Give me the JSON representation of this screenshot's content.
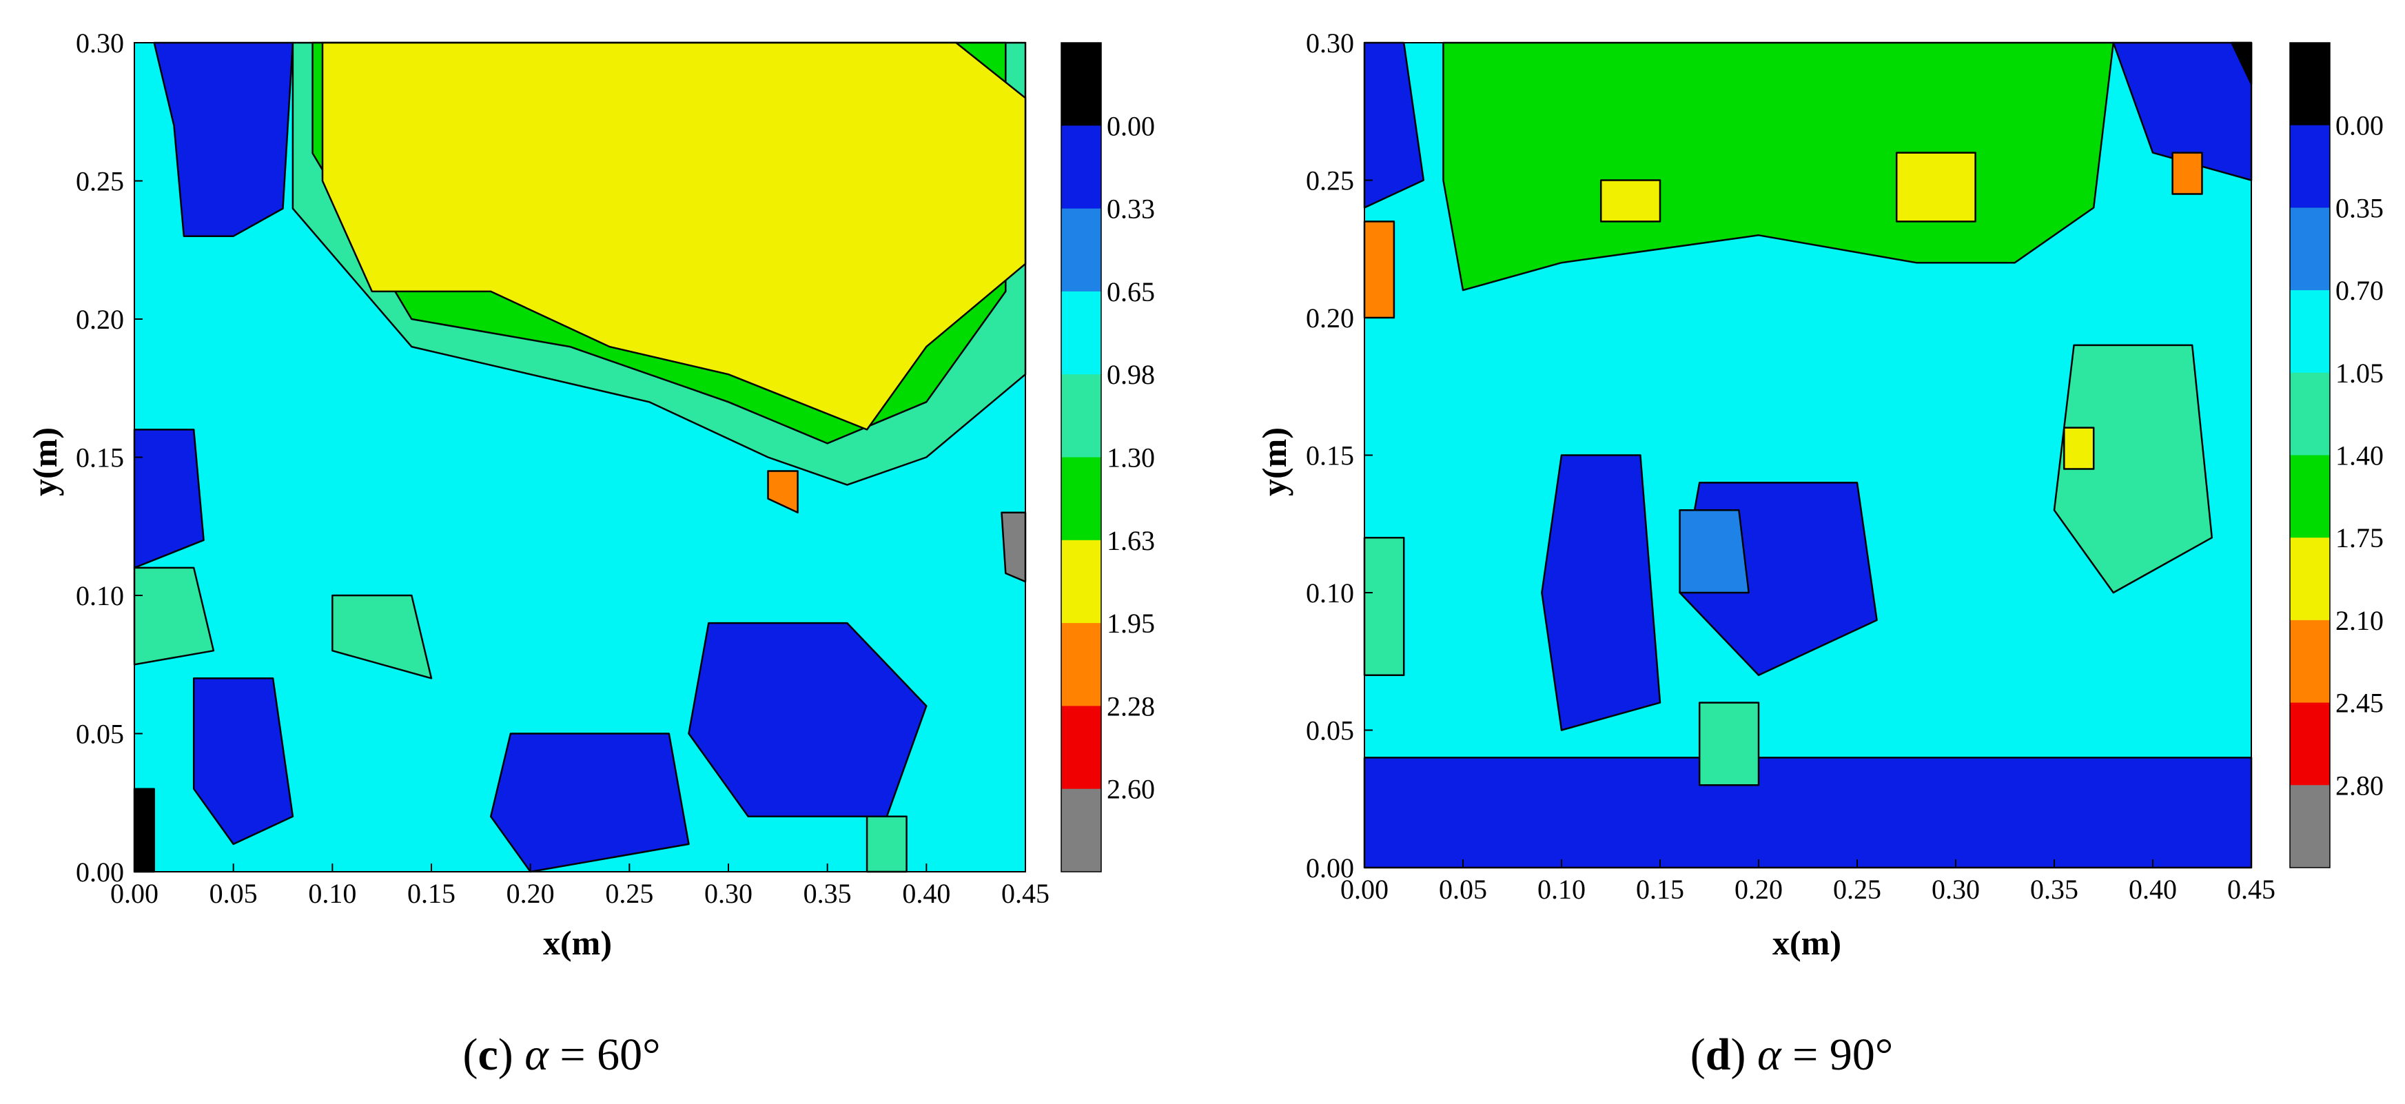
{
  "chart_data": [
    {
      "type": "heatmap",
      "title": "",
      "xlabel": "x(m)",
      "ylabel": "y(m)",
      "xlim": [
        0,
        0.45
      ],
      "ylim": [
        0,
        0.3
      ],
      "x_ticks": [
        "0.00",
        "0.05",
        "0.10",
        "0.15",
        "0.20",
        "0.25",
        "0.30",
        "0.35",
        "0.40",
        "0.45"
      ],
      "y_ticks": [
        "0.00",
        "0.05",
        "0.10",
        "0.15",
        "0.20",
        "0.25",
        "0.30"
      ],
      "caption": {
        "letter": "c",
        "variable": "α",
        "rest": " = 60°"
      },
      "colorbar": {
        "labels": [
          "0.00",
          "0.33",
          "0.65",
          "0.98",
          "1.30",
          "1.63",
          "1.95",
          "2.28",
          "2.60"
        ],
        "colors": [
          "#000000",
          "#0a1ee6",
          "#1e82e6",
          "#00f5f5",
          "#2de6a0",
          "#00dc00",
          "#f0f000",
          "#ff8200",
          "#f00000",
          "#808080"
        ]
      },
      "contour_regions": [
        {
          "level": 4,
          "points": [
            [
              0.08,
              0.3
            ],
            [
              0.45,
              0.3
            ],
            [
              0.45,
              0.18
            ],
            [
              0.4,
              0.15
            ],
            [
              0.36,
              0.14
            ],
            [
              0.32,
              0.15
            ],
            [
              0.26,
              0.17
            ],
            [
              0.2,
              0.18
            ],
            [
              0.14,
              0.19
            ],
            [
              0.08,
              0.24
            ]
          ]
        },
        {
          "level": 5,
          "points": [
            [
              0.09,
              0.3
            ],
            [
              0.44,
              0.3
            ],
            [
              0.44,
              0.21
            ],
            [
              0.4,
              0.17
            ],
            [
              0.35,
              0.155
            ],
            [
              0.3,
              0.17
            ],
            [
              0.22,
              0.19
            ],
            [
              0.14,
              0.2
            ],
            [
              0.09,
              0.26
            ]
          ]
        },
        {
          "level": 6,
          "points": [
            [
              0.095,
              0.3
            ],
            [
              0.415,
              0.3
            ],
            [
              0.45,
              0.28
            ],
            [
              0.45,
              0.22
            ],
            [
              0.4,
              0.19
            ],
            [
              0.37,
              0.16
            ],
            [
              0.3,
              0.18
            ],
            [
              0.24,
              0.19
            ],
            [
              0.18,
              0.21
            ],
            [
              0.12,
              0.21
            ],
            [
              0.095,
              0.25
            ]
          ]
        },
        {
          "level": 1,
          "points": [
            [
              0.01,
              0.3
            ],
            [
              0.08,
              0.3
            ],
            [
              0.075,
              0.24
            ],
            [
              0.05,
              0.23
            ],
            [
              0.025,
              0.23
            ],
            [
              0.02,
              0.27
            ]
          ]
        },
        {
          "level": 1,
          "points": [
            [
              0.0,
              0.16
            ],
            [
              0.03,
              0.16
            ],
            [
              0.035,
              0.12
            ],
            [
              0.0,
              0.11
            ]
          ]
        },
        {
          "level": 1,
          "points": [
            [
              0.29,
              0.09
            ],
            [
              0.36,
              0.09
            ],
            [
              0.4,
              0.06
            ],
            [
              0.38,
              0.02
            ],
            [
              0.31,
              0.02
            ],
            [
              0.28,
              0.05
            ]
          ]
        },
        {
          "level": 1,
          "points": [
            [
              0.19,
              0.05
            ],
            [
              0.27,
              0.05
            ],
            [
              0.28,
              0.01
            ],
            [
              0.2,
              0.0
            ],
            [
              0.18,
              0.02
            ]
          ]
        },
        {
          "level": 1,
          "points": [
            [
              0.03,
              0.07
            ],
            [
              0.07,
              0.07
            ],
            [
              0.08,
              0.02
            ],
            [
              0.05,
              0.01
            ],
            [
              0.03,
              0.03
            ]
          ]
        },
        {
          "level": 4,
          "points": [
            [
              0.0,
              0.11
            ],
            [
              0.03,
              0.11
            ],
            [
              0.04,
              0.08
            ],
            [
              0.0,
              0.075
            ]
          ]
        },
        {
          "level": 4,
          "points": [
            [
              0.1,
              0.1
            ],
            [
              0.14,
              0.1
            ],
            [
              0.15,
              0.07
            ],
            [
              0.1,
              0.08
            ]
          ]
        },
        {
          "level": 4,
          "points": [
            [
              0.37,
              0.02
            ],
            [
              0.39,
              0.02
            ],
            [
              0.39,
              0.0
            ],
            [
              0.37,
              0.0
            ]
          ]
        },
        {
          "level": 0,
          "points": [
            [
              0.0,
              0.03
            ],
            [
              0.01,
              0.03
            ],
            [
              0.01,
              0.0
            ],
            [
              0.0,
              0.0
            ]
          ]
        },
        {
          "level": 9,
          "points": [
            [
              0.438,
              0.13
            ],
            [
              0.45,
              0.13
            ],
            [
              0.45,
              0.105
            ],
            [
              0.44,
              0.108
            ]
          ]
        },
        {
          "level": 7,
          "points": [
            [
              0.32,
              0.145
            ],
            [
              0.335,
              0.145
            ],
            [
              0.335,
              0.13
            ],
            [
              0.32,
              0.135
            ]
          ]
        }
      ]
    },
    {
      "type": "heatmap",
      "title": "",
      "xlabel": "x(m)",
      "ylabel": "y(m)",
      "xlim": [
        0,
        0.45
      ],
      "ylim": [
        0,
        0.3
      ],
      "x_ticks": [
        "0.00",
        "0.05",
        "0.10",
        "0.15",
        "0.20",
        "0.25",
        "0.30",
        "0.35",
        "0.40",
        "0.45"
      ],
      "y_ticks": [
        "0.00",
        "0.05",
        "0.10",
        "0.15",
        "0.20",
        "0.25",
        "0.30"
      ],
      "caption": {
        "letter": "d",
        "variable": "α",
        "rest": " = 90°"
      },
      "colorbar": {
        "labels": [
          "0.00",
          "0.35",
          "0.70",
          "1.05",
          "1.40",
          "1.75",
          "2.10",
          "2.45",
          "2.80"
        ],
        "colors": [
          "#000000",
          "#0a1ee6",
          "#1e82e6",
          "#00f5f5",
          "#2de6a0",
          "#00dc00",
          "#f0f000",
          "#ff8200",
          "#f00000",
          "#808080"
        ]
      },
      "contour_regions": [
        {
          "level": 5,
          "points": [
            [
              0.04,
              0.3
            ],
            [
              0.38,
              0.3
            ],
            [
              0.37,
              0.24
            ],
            [
              0.33,
              0.22
            ],
            [
              0.28,
              0.22
            ],
            [
              0.2,
              0.23
            ],
            [
              0.1,
              0.22
            ],
            [
              0.05,
              0.21
            ],
            [
              0.04,
              0.25
            ]
          ]
        },
        {
          "level": 4,
          "points": [
            [
              0.36,
              0.19
            ],
            [
              0.42,
              0.19
            ],
            [
              0.43,
              0.12
            ],
            [
              0.38,
              0.1
            ],
            [
              0.35,
              0.13
            ]
          ]
        },
        {
          "level": 1,
          "points": [
            [
              0.38,
              0.3
            ],
            [
              0.45,
              0.3
            ],
            [
              0.45,
              0.25
            ],
            [
              0.4,
              0.26
            ]
          ]
        },
        {
          "level": 1,
          "points": [
            [
              0.0,
              0.3
            ],
            [
              0.02,
              0.3
            ],
            [
              0.03,
              0.25
            ],
            [
              0.0,
              0.24
            ]
          ]
        },
        {
          "level": 1,
          "points": [
            [
              0.0,
              0.04
            ],
            [
              0.45,
              0.04
            ],
            [
              0.45,
              0.0
            ],
            [
              0.0,
              0.0
            ]
          ]
        },
        {
          "level": 1,
          "points": [
            [
              0.1,
              0.15
            ],
            [
              0.14,
              0.15
            ],
            [
              0.15,
              0.06
            ],
            [
              0.1,
              0.05
            ],
            [
              0.09,
              0.1
            ]
          ]
        },
        {
          "level": 1,
          "points": [
            [
              0.17,
              0.14
            ],
            [
              0.25,
              0.14
            ],
            [
              0.26,
              0.09
            ],
            [
              0.2,
              0.07
            ],
            [
              0.16,
              0.1
            ]
          ]
        },
        {
          "level": 2,
          "points": [
            [
              0.16,
              0.13
            ],
            [
              0.19,
              0.13
            ],
            [
              0.195,
              0.1
            ],
            [
              0.16,
              0.1
            ]
          ]
        },
        {
          "level": 4,
          "points": [
            [
              0.0,
              0.12
            ],
            [
              0.02,
              0.12
            ],
            [
              0.02,
              0.07
            ],
            [
              0.0,
              0.07
            ]
          ]
        },
        {
          "level": 4,
          "points": [
            [
              0.17,
              0.06
            ],
            [
              0.2,
              0.06
            ],
            [
              0.2,
              0.03
            ],
            [
              0.17,
              0.03
            ]
          ]
        },
        {
          "level": 6,
          "points": [
            [
              0.27,
              0.26
            ],
            [
              0.31,
              0.26
            ],
            [
              0.31,
              0.235
            ],
            [
              0.27,
              0.235
            ]
          ]
        },
        {
          "level": 6,
          "points": [
            [
              0.12,
              0.25
            ],
            [
              0.15,
              0.25
            ],
            [
              0.15,
              0.235
            ],
            [
              0.12,
              0.235
            ]
          ]
        },
        {
          "level": 6,
          "points": [
            [
              0.355,
              0.16
            ],
            [
              0.37,
              0.16
            ],
            [
              0.37,
              0.145
            ],
            [
              0.355,
              0.145
            ]
          ]
        },
        {
          "level": 7,
          "points": [
            [
              0.0,
              0.235
            ],
            [
              0.015,
              0.235
            ],
            [
              0.015,
              0.2
            ],
            [
              0.0,
              0.2
            ]
          ]
        },
        {
          "level": 7,
          "points": [
            [
              0.41,
              0.26
            ],
            [
              0.425,
              0.26
            ],
            [
              0.425,
              0.245
            ],
            [
              0.41,
              0.245
            ]
          ]
        },
        {
          "level": 0,
          "points": [
            [
              0.44,
              0.3
            ],
            [
              0.45,
              0.3
            ],
            [
              0.45,
              0.285
            ]
          ]
        }
      ]
    }
  ]
}
